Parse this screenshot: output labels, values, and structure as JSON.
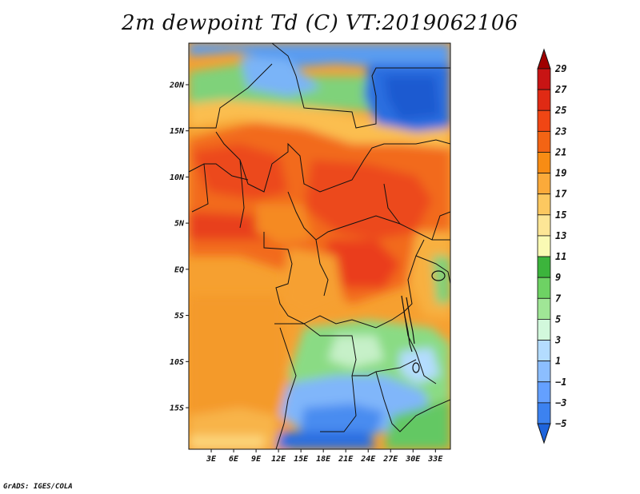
{
  "title": "2m dewpoint Td (C) VT:2019062106",
  "credit": "GrADS: IGES/COLA",
  "map": {
    "lon_range": [
      0,
      35
    ],
    "lat_range": [
      -19.5,
      24.5
    ],
    "lat_ticks": [
      {
        "value": 20,
        "label": "20N"
      },
      {
        "value": 15,
        "label": "15N"
      },
      {
        "value": 10,
        "label": "10N"
      },
      {
        "value": 5,
        "label": "5N"
      },
      {
        "value": 0,
        "label": "EQ"
      },
      {
        "value": -5,
        "label": "5S"
      },
      {
        "value": -10,
        "label": "10S"
      },
      {
        "value": -15,
        "label": "15S"
      }
    ],
    "lon_ticks": [
      {
        "value": 3,
        "label": "3E"
      },
      {
        "value": 6,
        "label": "6E"
      },
      {
        "value": 9,
        "label": "9E"
      },
      {
        "value": 12,
        "label": "12E"
      },
      {
        "value": 15,
        "label": "15E"
      },
      {
        "value": 18,
        "label": "18E"
      },
      {
        "value": 21,
        "label": "21E"
      },
      {
        "value": 24,
        "label": "24E"
      },
      {
        "value": 27,
        "label": "27E"
      },
      {
        "value": 30,
        "label": "30E"
      },
      {
        "value": 33,
        "label": "33E"
      }
    ]
  },
  "colorbar": {
    "labels": [
      "29",
      "27",
      "25",
      "23",
      "21",
      "19",
      "17",
      "15",
      "13",
      "11",
      "9",
      "7",
      "5",
      "3",
      "1",
      "−1",
      "−3",
      "−5"
    ],
    "colors": [
      "#a00000",
      "#c81414",
      "#e02a14",
      "#f04614",
      "#f36414",
      "#f88c14",
      "#fbaa3a",
      "#fcc860",
      "#fde696",
      "#fafab4",
      "#3cb43c",
      "#6ed264",
      "#a0e696",
      "#d2f8dc",
      "#b4dcff",
      "#8cbeff",
      "#64a0ff",
      "#3c82f0",
      "#1e64dc"
    ]
  }
}
